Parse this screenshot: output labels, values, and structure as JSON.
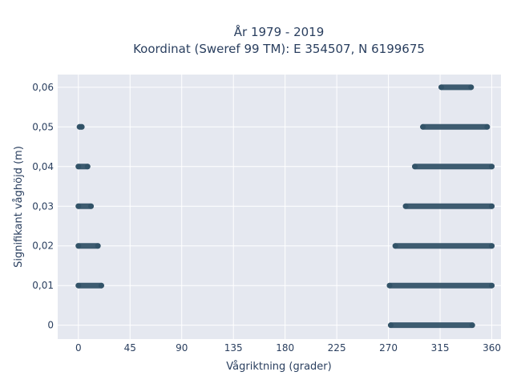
{
  "chart_data": {
    "type": "scatter",
    "title_line1": "År 1979 - 2019",
    "title_line2": "Koordinat (Sweref 99 TM): E 354507, N 6199675",
    "xlabel": "Vågriktning (grader)",
    "ylabel": "Signifikant våghöjd (m)",
    "xlim": [
      -18,
      368
    ],
    "ylim": [
      -0.0035,
      0.0632
    ],
    "x_ticks": [
      {
        "value": 0,
        "label": "0"
      },
      {
        "value": 45,
        "label": "45"
      },
      {
        "value": 90,
        "label": "90"
      },
      {
        "value": 135,
        "label": "135"
      },
      {
        "value": 180,
        "label": "180"
      },
      {
        "value": 225,
        "label": "225"
      },
      {
        "value": 270,
        "label": "270"
      },
      {
        "value": 315,
        "label": "315"
      },
      {
        "value": 360,
        "label": "360"
      }
    ],
    "y_ticks": [
      {
        "value": 0,
        "label": "0"
      },
      {
        "value": 0.01,
        "label": "0,01"
      },
      {
        "value": 0.02,
        "label": "0,02"
      },
      {
        "value": 0.03,
        "label": "0,03"
      },
      {
        "value": 0.04,
        "label": "0,04"
      },
      {
        "value": 0.05,
        "label": "0,05"
      },
      {
        "value": 0.06,
        "label": "0,06"
      }
    ],
    "grid": true,
    "marker_color": "#2f5066",
    "plot_background": "#e5e8f0",
    "series": [
      {
        "points": [
          {
            "x_range": [
              272,
              343
            ],
            "y": 0
          },
          {
            "x_range": [
              0,
              20
            ],
            "y": 0.01
          },
          {
            "x_range": [
              271,
              360
            ],
            "y": 0.01
          },
          {
            "x_range": [
              0,
              17
            ],
            "y": 0.02
          },
          {
            "x_range": [
              276,
              360
            ],
            "y": 0.02
          },
          {
            "x_range": [
              0,
              11
            ],
            "y": 0.03
          },
          {
            "x_range": [
              285,
              360
            ],
            "y": 0.03
          },
          {
            "x_range": [
              0,
              8
            ],
            "y": 0.04
          },
          {
            "x_range": [
              293,
              360
            ],
            "y": 0.04
          },
          {
            "x_range": [
              1,
              3
            ],
            "y": 0.05
          },
          {
            "x_range": [
              300,
              356
            ],
            "y": 0.05
          },
          {
            "x_range": [
              316,
              342
            ],
            "y": 0.06
          }
        ]
      }
    ]
  }
}
